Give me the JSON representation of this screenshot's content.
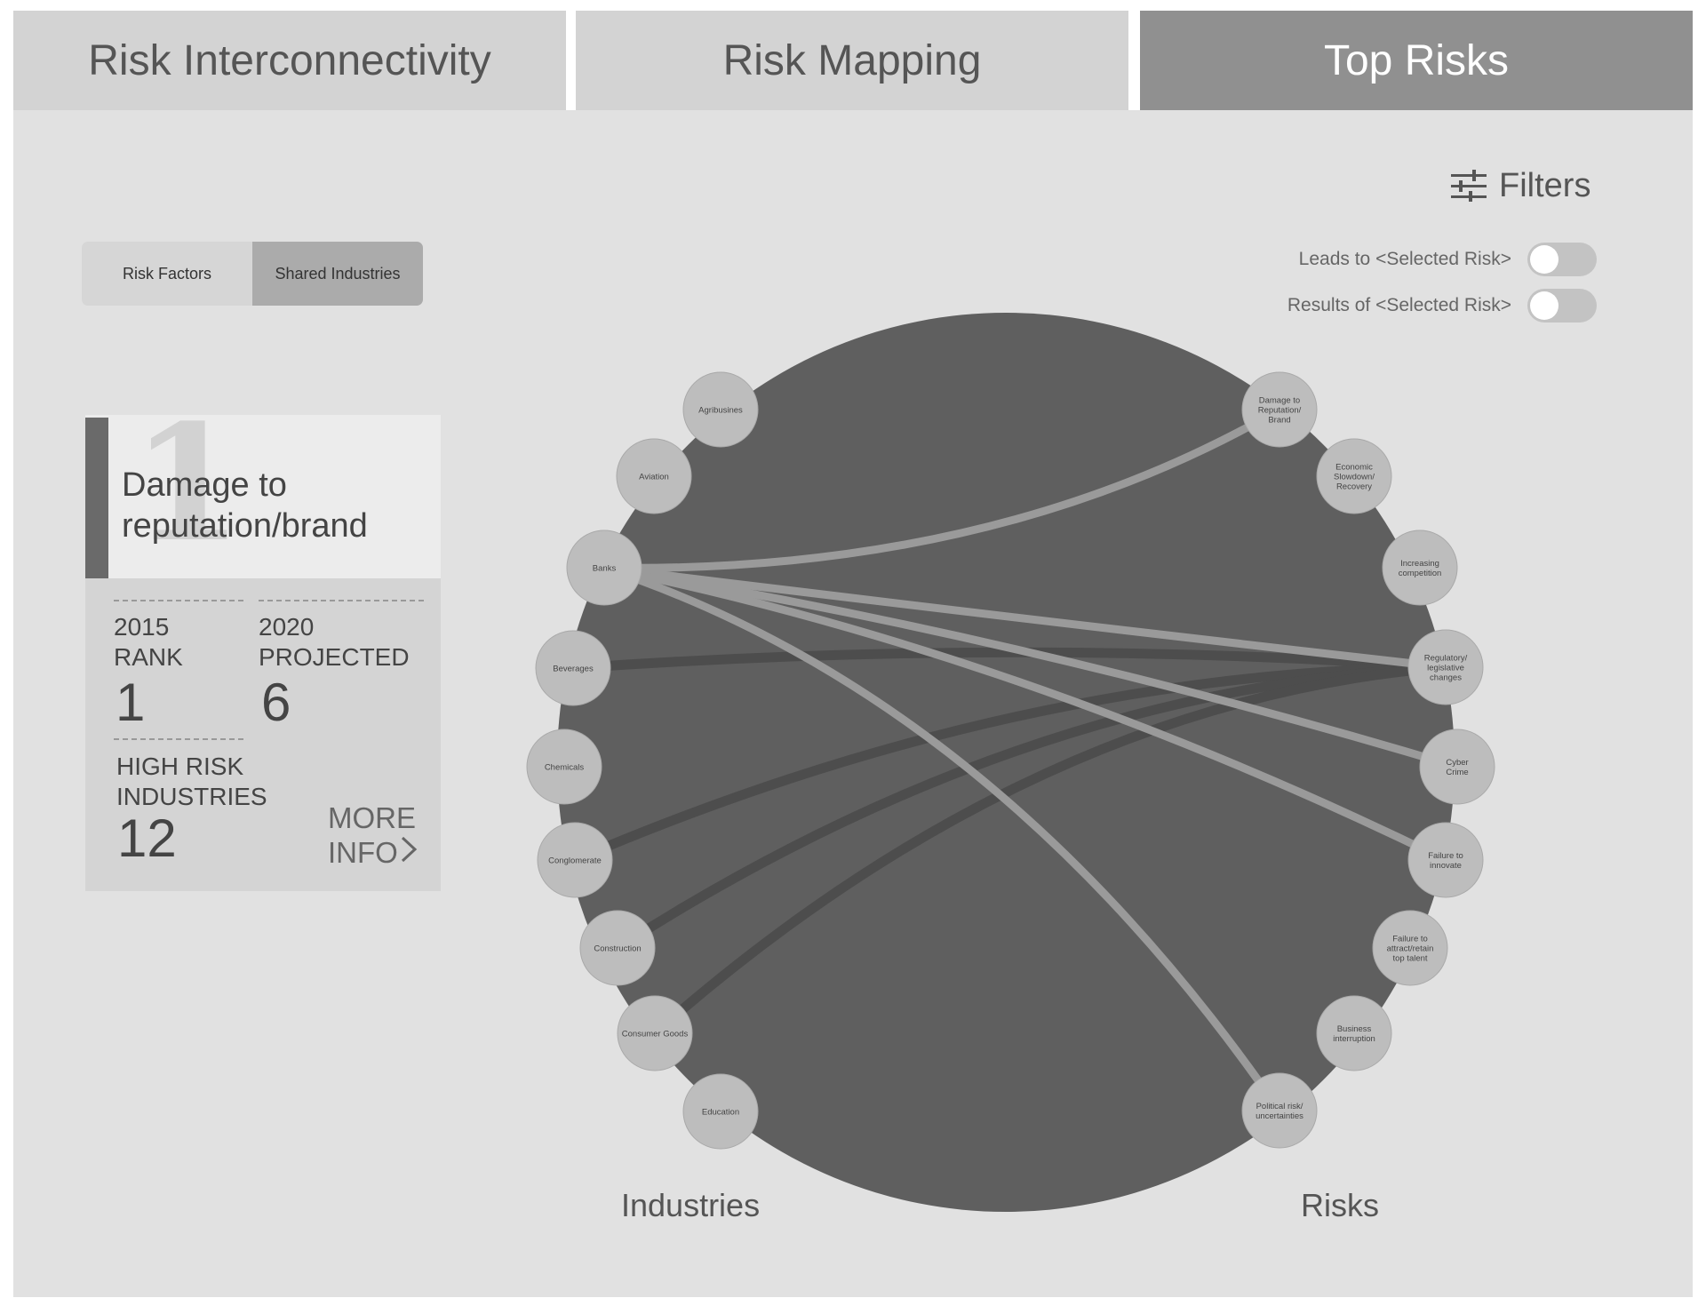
{
  "tabs": [
    {
      "label": "Risk Interconnectivity",
      "active": false
    },
    {
      "label": "Risk Mapping",
      "active": false
    },
    {
      "label": "Top Risks",
      "active": true
    }
  ],
  "filters": {
    "label": "Filters",
    "icon": "sliders-icon"
  },
  "toggles": [
    {
      "label": "Leads to <Selected Risk>",
      "on": false
    },
    {
      "label": "Results of <Selected Risk>",
      "on": false
    }
  ],
  "segmented": {
    "options": [
      "Risk Factors",
      "Shared Industries"
    ],
    "selected": "Shared Industries"
  },
  "risk_card": {
    "rank_watermark": "1",
    "title": "Damage to reputation/brand",
    "rank_2015_label": "2015\nRANK",
    "rank_2015_value": "1",
    "projected_2020_label": "2020\nPROJECTED",
    "projected_2020_value": "6",
    "high_risk_label": "HIGH RISK\nINDUSTRIES",
    "high_risk_value": "12",
    "more_info_line1": "MORE",
    "more_info_line2": "INFO"
  },
  "diagram": {
    "industries_label": "Industries",
    "risks_label": "Risks",
    "industries": [
      "Agribusines",
      "Aviation",
      "Banks",
      "Beverages",
      "Chemicals",
      "Conglomerate",
      "Construction",
      "Consumer Goods",
      "Education"
    ],
    "risks": [
      "Damage to\nReputation/\nBrand",
      "Economic\nSlowdown/\nRecovery",
      "Increasing\ncompetition",
      "Regulatory/\nlegislative\nchanges",
      "Cyber\nCrime",
      "Failure to\ninnovate",
      "Failure to\nattract/retain\ntop talent",
      "Business\ninterruption",
      "Political risk/\nuncertainties"
    ],
    "highlighted_links": [
      [
        "Banks",
        "Damage to\nReputation/\nBrand"
      ],
      [
        "Banks",
        "Regulatory/\nlegislative\nchanges"
      ],
      [
        "Banks",
        "Cyber\nCrime"
      ],
      [
        "Banks",
        "Failure to\ninnovate"
      ],
      [
        "Banks",
        "Political risk/\nuncertainties"
      ]
    ],
    "background_links": [
      [
        "Beverages",
        "Regulatory/\nlegislative\nchanges"
      ],
      [
        "Conglomerate",
        "Regulatory/\nlegislative\nchanges"
      ],
      [
        "Construction",
        "Regulatory/\nlegislative\nchanges"
      ],
      [
        "Consumer Goods",
        "Regulatory/\nlegislative\nchanges"
      ]
    ],
    "colors": {
      "disc": "#5f5f5f",
      "node": "#bdbdbd",
      "highlight_link": "#9a9a9a",
      "background_link": "#4d4d4d"
    }
  }
}
